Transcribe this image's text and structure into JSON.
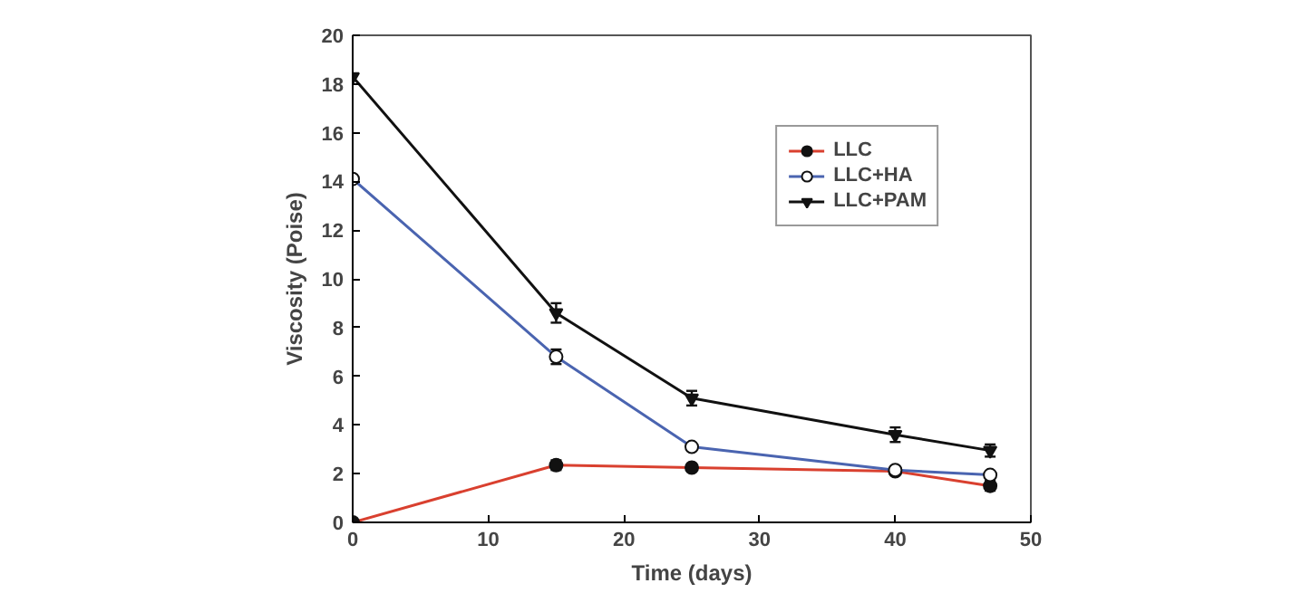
{
  "chart_data": {
    "type": "line",
    "xlabel": "Time (days)",
    "ylabel": "Viscosity (Poise)",
    "x": [
      0,
      15,
      25,
      40,
      47
    ],
    "xlim": [
      0,
      50
    ],
    "xticks": [
      0,
      10,
      20,
      30,
      40,
      50
    ],
    "ylim": [
      0,
      20
    ],
    "yticks": [
      0,
      2,
      4,
      6,
      8,
      10,
      12,
      14,
      16,
      18,
      20
    ],
    "grid": false,
    "legend": "top right",
    "series": [
      {
        "name": "LLC",
        "color": "#d9402f",
        "marker": "circle",
        "values": [
          0,
          2.35,
          2.25,
          2.1,
          1.5
        ],
        "errors": [
          null,
          0.2,
          null,
          null,
          0.2
        ]
      },
      {
        "name": "LLC+HA",
        "color": "#4a64b0",
        "marker": "circle",
        "values": [
          14.1,
          6.8,
          3.1,
          2.15,
          1.95
        ],
        "errors": [
          null,
          0.3,
          null,
          null,
          null
        ]
      },
      {
        "name": "LLC+PAM",
        "color": "#111111",
        "marker": "triangle",
        "values": [
          18.3,
          8.6,
          5.1,
          3.6,
          2.95
        ],
        "errors": [
          null,
          0.4,
          0.3,
          0.3,
          0.25
        ]
      }
    ]
  }
}
